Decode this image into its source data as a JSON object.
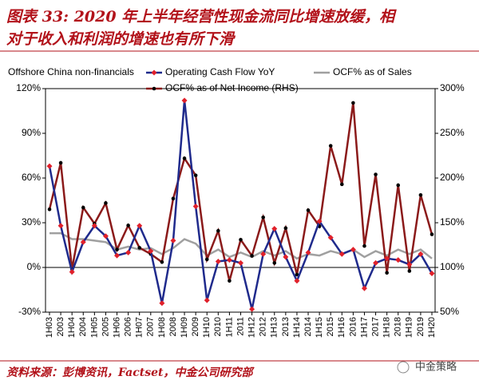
{
  "title_lines": [
    "图表 33: 2020 年上半年经营性现金流同比增速放缓，相",
    "对于收入和利润的增速也有所下滑"
  ],
  "source": "资料来源：彭博资讯，Factset，中金公司研究部",
  "watermark": "中金策略",
  "chart_data": {
    "type": "line",
    "subtitle": "Offshore China non-financials",
    "categories": [
      "1H03",
      "2003",
      "1H04",
      "2004",
      "1H05",
      "2005",
      "1H06",
      "2006",
      "1H07",
      "2007",
      "1H08",
      "2008",
      "1H09",
      "2009",
      "1H10",
      "2010",
      "1H11",
      "2011",
      "1H12",
      "2012",
      "1H13",
      "2013",
      "1H14",
      "2014",
      "1H15",
      "2015",
      "1H16",
      "2016",
      "1H17",
      "2017",
      "1H18",
      "2018",
      "1H19",
      "2019",
      "1H20"
    ],
    "series": [
      {
        "name": "Operating Cash Flow YoY",
        "color": "#1f2a8c",
        "marker_color": "#e0202a",
        "marker": "diamond",
        "axis": "y",
        "values": [
          68,
          28,
          -3,
          17,
          28,
          21,
          8,
          10,
          28,
          11,
          -24,
          18,
          112,
          41,
          -22,
          4,
          5,
          3,
          -28,
          9,
          26,
          7,
          -9,
          10,
          31,
          20,
          9,
          12,
          -14,
          3,
          6,
          5,
          2,
          9,
          -4
        ]
      },
      {
        "name": "OCF% as of Sales",
        "color": "#a0a0a0",
        "axis": "y",
        "values": [
          23,
          23,
          19,
          19,
          18,
          17,
          12,
          14,
          12,
          13,
          9,
          13,
          19,
          16,
          8,
          12,
          7,
          10,
          7,
          11,
          8,
          11,
          6,
          9,
          8,
          11,
          9,
          12,
          7,
          11,
          8,
          12,
          9,
          12,
          6
        ]
      },
      {
        "name": "OCF% as of Net Income (RHS)",
        "color": "#8b1a1a",
        "marker_color": "#000000",
        "marker": "circle",
        "axis": "y2",
        "values": [
          165,
          217,
          98,
          167,
          149,
          172,
          120,
          147,
          122,
          115,
          106,
          177,
          222,
          203,
          109,
          141,
          85,
          131,
          113,
          156,
          105,
          144,
          92,
          164,
          146,
          236,
          193,
          284,
          124,
          204,
          94,
          192,
          96,
          181,
          137
        ]
      }
    ],
    "ylim": [
      -30,
      120
    ],
    "yticks": [
      {
        "value": -30,
        "label": "-30%"
      },
      {
        "value": 0,
        "label": "0%"
      },
      {
        "value": 30,
        "label": "30%"
      },
      {
        "value": 60,
        "label": "60%"
      },
      {
        "value": 90,
        "label": "90%"
      },
      {
        "value": 120,
        "label": "120%"
      }
    ],
    "y2lim": [
      50,
      300
    ],
    "y2ticks": [
      {
        "value": 50,
        "label": "50%"
      },
      {
        "value": 100,
        "label": "100%"
      },
      {
        "value": 150,
        "label": "150%"
      },
      {
        "value": 200,
        "label": "200%"
      },
      {
        "value": 250,
        "label": "250%"
      },
      {
        "value": 300,
        "label": "300%"
      }
    ],
    "grid": false
  }
}
